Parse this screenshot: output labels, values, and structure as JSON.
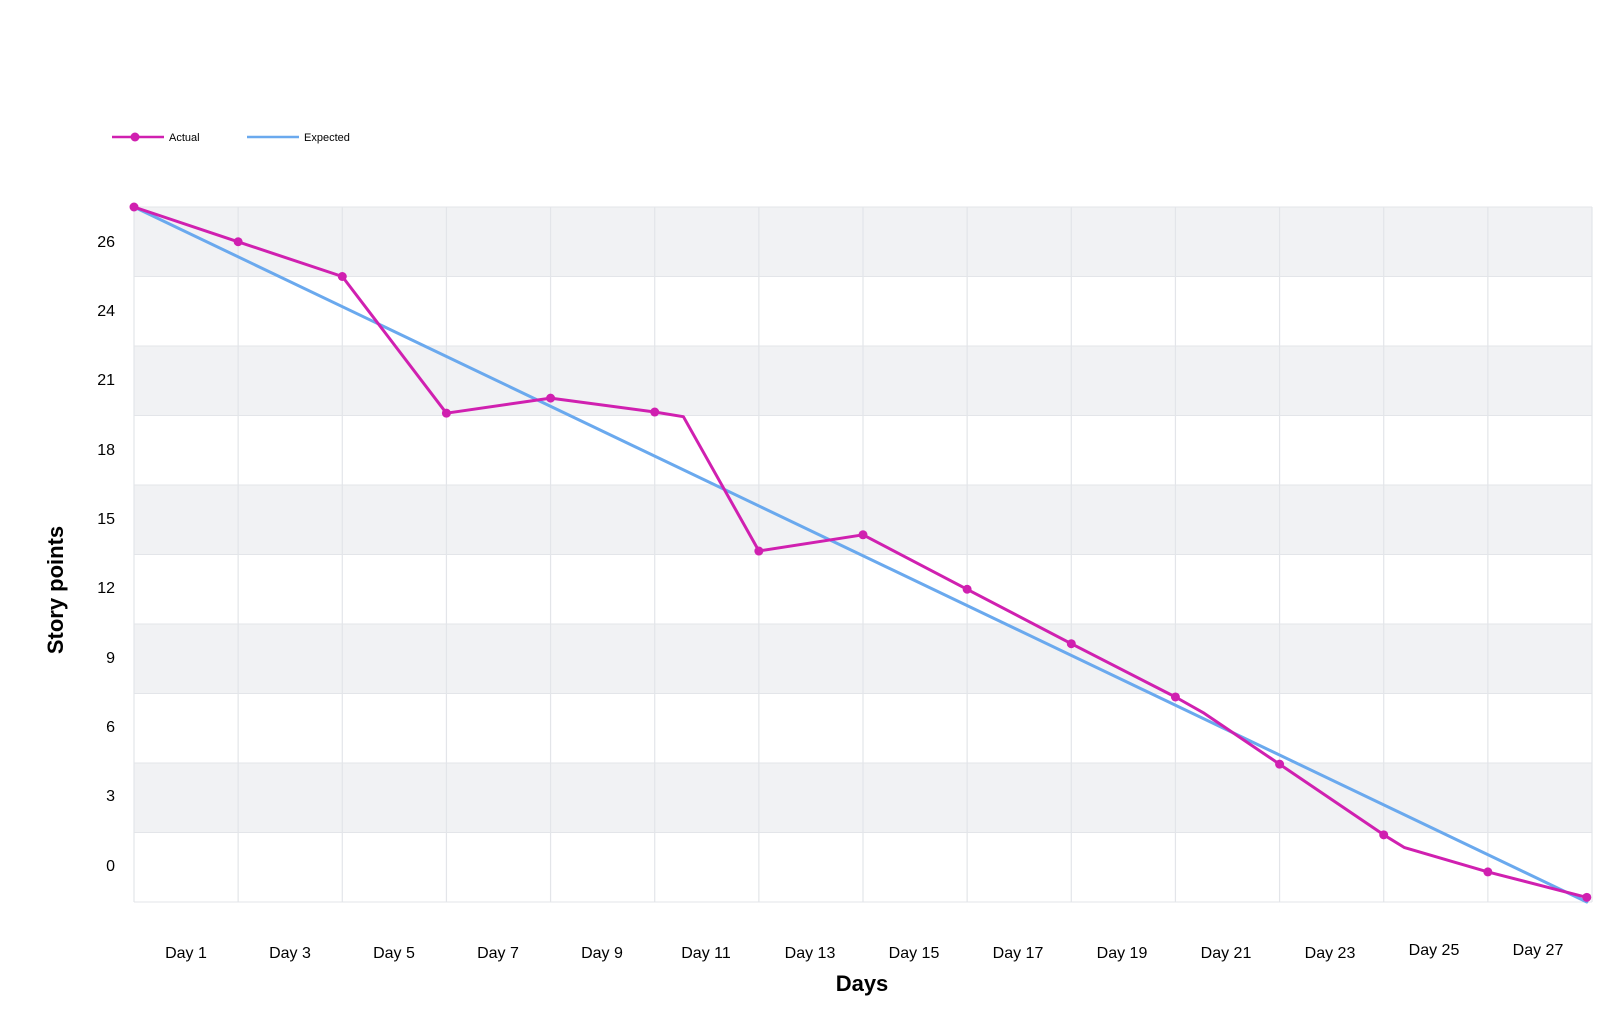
{
  "chart_data": {
    "type": "line",
    "xlabel": "Days",
    "ylabel": "Story points",
    "x_tick_labels": [
      "Day 1",
      "Day 3",
      "Day 5",
      "Day 7",
      "Day 9",
      "Day 11",
      "Day 13",
      "Day 15",
      "Day 17",
      "Day 19",
      "Day 21",
      "Day 23",
      "Day 25",
      "Day 27"
    ],
    "y_tick_labels": [
      "26",
      "24",
      "21",
      "18",
      "15",
      "12",
      "9",
      "6",
      "3",
      "0"
    ],
    "ylim": [
      -1.5,
      28.5
    ],
    "xlim": [
      0,
      28
    ],
    "grid": true,
    "legend_position": "top-left",
    "series": [
      {
        "name": "Actual",
        "color": "#d020b0",
        "markers": true,
        "points": [
          {
            "x": 0,
            "y": 28.5
          },
          {
            "x": 2,
            "y": 27
          },
          {
            "x": 4,
            "y": 25.5
          },
          {
            "x": 6,
            "y": 19.6
          },
          {
            "x": 8,
            "y": 20.25
          },
          {
            "x": 10,
            "y": 19.65
          },
          {
            "x": 10.55,
            "y": 19.45,
            "marker": false
          },
          {
            "x": 12,
            "y": 13.65
          },
          {
            "x": 14,
            "y": 14.35
          },
          {
            "x": 16,
            "y": 12
          },
          {
            "x": 18,
            "y": 9.65
          },
          {
            "x": 20,
            "y": 7.35
          },
          {
            "x": 20.55,
            "y": 6.65,
            "marker": false
          },
          {
            "x": 22,
            "y": 4.45
          },
          {
            "x": 24,
            "y": 1.4
          },
          {
            "x": 24.4,
            "y": 0.85,
            "marker": false
          },
          {
            "x": 26,
            "y": -0.2
          },
          {
            "x": 27.9,
            "y": -1.3
          }
        ]
      },
      {
        "name": "Expected",
        "color": "#6aa9ee",
        "markers": false,
        "points": [
          {
            "x": 0,
            "y": 28.5
          },
          {
            "x": 27.9,
            "y": -1.5
          }
        ]
      }
    ]
  }
}
